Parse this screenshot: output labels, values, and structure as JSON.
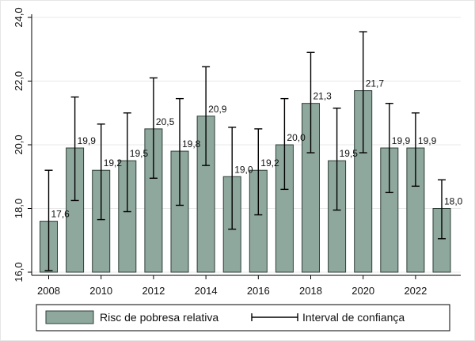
{
  "chart_data": {
    "type": "bar",
    "title": "",
    "xlabel": "",
    "ylabel": "",
    "ylim": [
      16.0,
      24.0
    ],
    "yticks": [
      "16,0",
      "18,0",
      "20,0",
      "22,0",
      "24,0"
    ],
    "ytick_values": [
      16,
      18,
      20,
      22,
      24
    ],
    "xticks": [
      "2008",
      "2010",
      "2012",
      "2014",
      "2016",
      "2018",
      "2020",
      "2022"
    ],
    "categories": [
      2008,
      2009,
      2010,
      2011,
      2012,
      2013,
      2014,
      2015,
      2016,
      2017,
      2018,
      2019,
      2020,
      2021,
      2022,
      2023
    ],
    "series": [
      {
        "name": "Risc de pobresa relativa",
        "values": [
          17.6,
          19.9,
          19.2,
          19.5,
          20.5,
          19.8,
          20.9,
          19.0,
          19.2,
          20.0,
          21.3,
          19.5,
          21.7,
          19.9,
          19.9,
          18.0
        ],
        "labels": [
          "17,6",
          "19,9",
          "19,2",
          "19,5",
          "20,5",
          "19,8",
          "20,9",
          "19,0",
          "19,2",
          "20,0",
          "21,3",
          "19,5",
          "21,7",
          "19,9",
          "19,9",
          "18,0"
        ],
        "color": "#8fa89d"
      }
    ],
    "error_bars": {
      "name": "Interval de confiança",
      "low": [
        16.05,
        18.25,
        17.65,
        17.9,
        18.95,
        18.1,
        19.35,
        17.35,
        17.8,
        18.6,
        19.75,
        17.95,
        19.75,
        18.5,
        18.7,
        17.05
      ],
      "high": [
        19.2,
        21.5,
        20.65,
        21.0,
        22.1,
        21.45,
        22.45,
        20.55,
        20.5,
        21.45,
        22.9,
        21.15,
        23.55,
        21.3,
        21.0,
        18.9
      ],
      "color": "#000000"
    },
    "grid": true,
    "legend_position": "bottom",
    "bar_edge_color": "#2e3f38"
  },
  "legend": {
    "bar_label": "Risc de pobresa relativa",
    "ci_label": "Interval de confiança"
  }
}
